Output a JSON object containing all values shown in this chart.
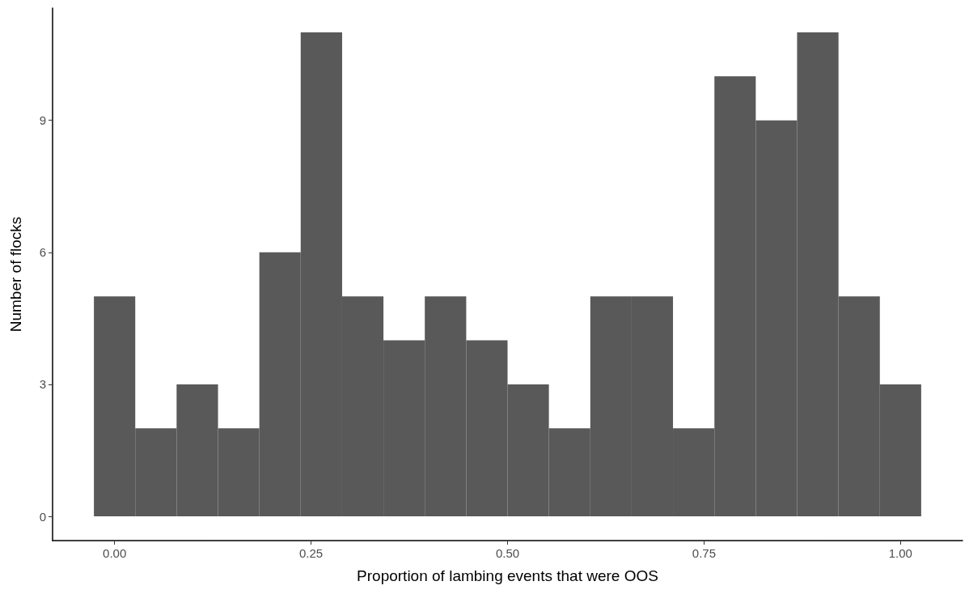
{
  "chart_data": {
    "type": "histogram",
    "xlabel": "Proportion of lambing events that were OOS",
    "ylabel": "Number of flocks",
    "bins": [
      -0.0263,
      0.0263,
      0.0789,
      0.1316,
      0.1842,
      0.2368,
      0.2895,
      0.3421,
      0.3947,
      0.4474,
      0.5,
      0.5526,
      0.6053,
      0.6579,
      0.7105,
      0.7632,
      0.8158,
      0.8684,
      0.9211,
      0.9737,
      1.0263
    ],
    "values": [
      5,
      2,
      3,
      2,
      6,
      11,
      5,
      4,
      5,
      4,
      3,
      2,
      5,
      5,
      2,
      10,
      9,
      11,
      5,
      3
    ],
    "color": "#595959",
    "xlim": [
      -0.0789,
      1.0789
    ],
    "ylim": [
      -0.55,
      11.55
    ],
    "xticks": [
      {
        "value": 0,
        "label": "0.00"
      },
      {
        "value": 0.25,
        "label": "0.25"
      },
      {
        "value": 0.5,
        "label": "0.50"
      },
      {
        "value": 0.75,
        "label": "0.75"
      },
      {
        "value": 1,
        "label": "1.00"
      }
    ],
    "yticks": [
      0,
      3,
      6,
      9
    ],
    "grid": false
  }
}
